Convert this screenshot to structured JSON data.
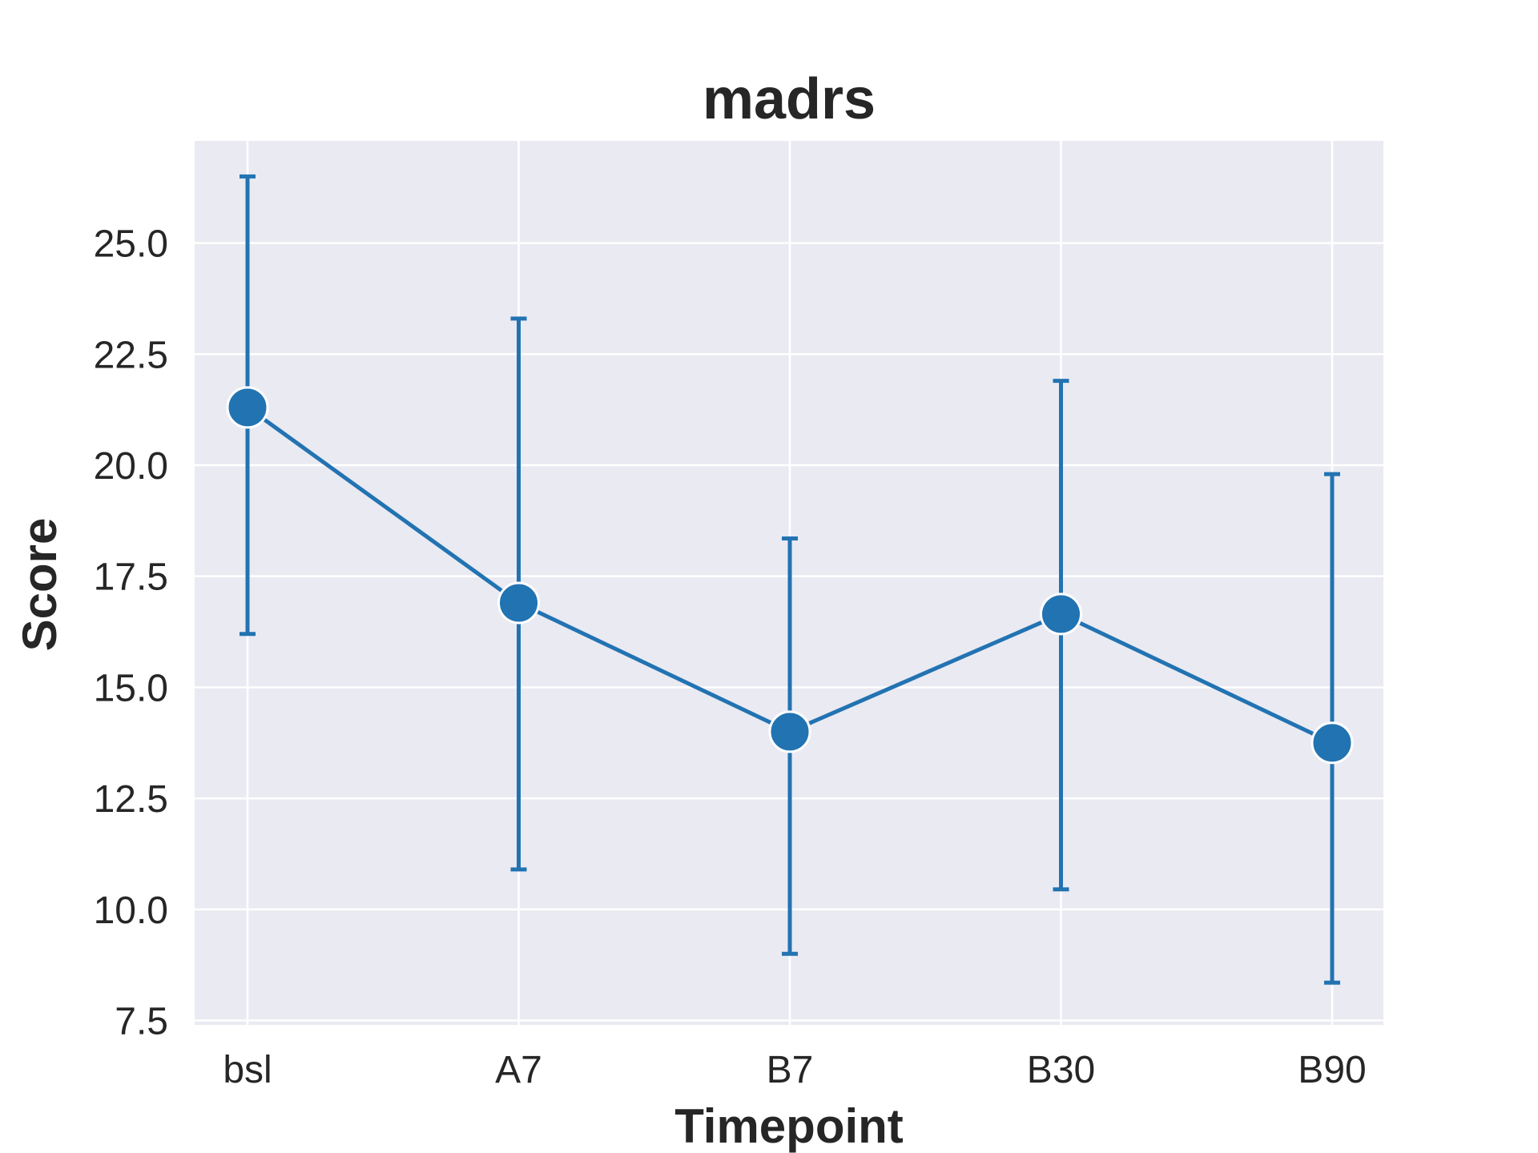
{
  "chart_data": {
    "type": "line",
    "title": "madrs",
    "xlabel": "Timepoint",
    "ylabel": "Score",
    "categories": [
      "bsl",
      "A7",
      "B7",
      "B30",
      "B90"
    ],
    "series": [
      {
        "values": [
          21.3,
          16.9,
          14.0,
          16.65,
          13.75
        ],
        "error_low": [
          16.2,
          10.9,
          9.0,
          10.45,
          8.35
        ],
        "error_high": [
          26.5,
          23.3,
          18.35,
          21.9,
          19.8
        ]
      }
    ],
    "ylim": [
      7.4,
      27.3
    ],
    "yticks": [
      7.5,
      10.0,
      12.5,
      15.0,
      17.5,
      20.0,
      22.5,
      25.0
    ],
    "ytick_labels": [
      "7.5",
      "10.0",
      "12.5",
      "15.0",
      "17.5",
      "20.0",
      "22.5",
      "25.0"
    ],
    "grid": true,
    "colors": {
      "series": "#2273b2",
      "plot_background": "#eaeaf2",
      "grid": "#ffffff",
      "text": "#262626"
    }
  }
}
